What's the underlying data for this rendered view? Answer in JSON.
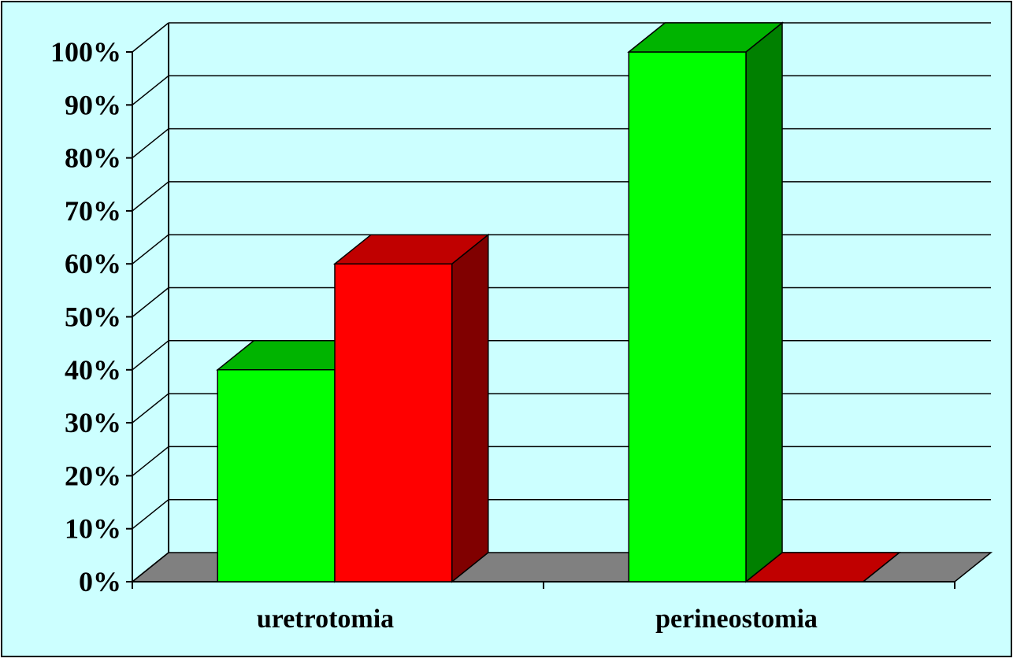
{
  "chart_data": {
    "type": "bar",
    "title": "",
    "xlabel": "",
    "ylabel": "",
    "categories": [
      "uretrotomia",
      "perineostomia"
    ],
    "series": [
      {
        "values": [
          40,
          100
        ]
      },
      {
        "values": [
          60,
          0
        ]
      }
    ],
    "ylim": [
      0,
      100
    ],
    "y_ticks": [
      "0%",
      "10%",
      "20%",
      "30%",
      "40%",
      "50%",
      "60%",
      "70%",
      "80%",
      "90%",
      "100%"
    ],
    "grid": true,
    "legend": "none",
    "style": "3d-clustered-column"
  },
  "colors": {
    "background": "#ccffff",
    "floor": "#808080",
    "series": [
      {
        "front": "#00ff00",
        "top": "#00b400",
        "side": "#008000"
      },
      {
        "front": "#ff0000",
        "top": "#c00000",
        "side": "#800000"
      }
    ]
  }
}
